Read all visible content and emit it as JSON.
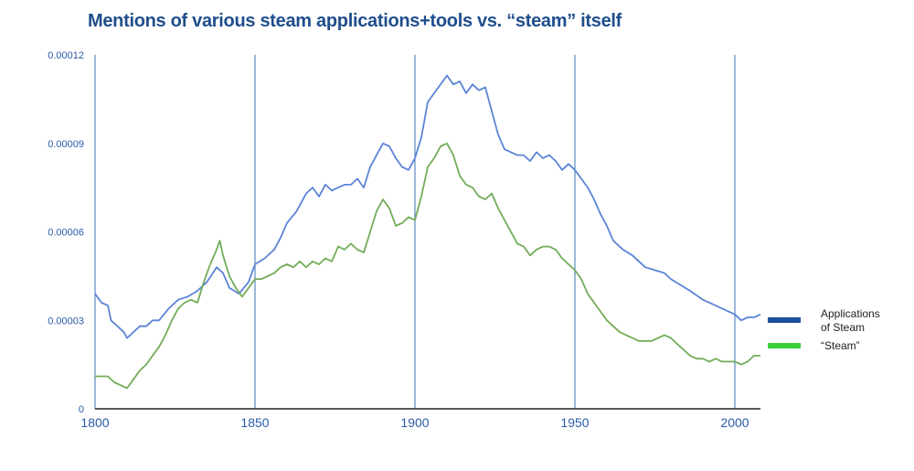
{
  "chart_data": {
    "type": "line",
    "title": "Mentions of various steam applications+tools vs. “steam” itself",
    "xlabel": "",
    "ylabel": "",
    "xlim": [
      1800,
      2008
    ],
    "ylim": [
      0,
      0.00012
    ],
    "x_ticks": [
      "1800",
      "1850",
      "1900",
      "1950",
      "2000"
    ],
    "x_tick_values": [
      1800,
      1850,
      1900,
      1950,
      2000
    ],
    "y_ticks": [
      "0",
      "0.00003",
      "0.00006",
      "0.00009",
      "0.00012"
    ],
    "y_tick_values": [
      0,
      3e-05,
      6e-05,
      9e-05,
      0.00012
    ],
    "grid": "vertical lines at each x tick",
    "legend_position": "right",
    "series": [
      {
        "name": "Applications of Steam",
        "color": "#5b84d6",
        "legend_color": "#1b4f9a",
        "points": [
          [
            1800,
            3.9e-05
          ],
          [
            1802,
            3.6e-05
          ],
          [
            1804,
            3.5e-05
          ],
          [
            1805,
            3e-05
          ],
          [
            1807,
            2.8e-05
          ],
          [
            1809,
            2.6e-05
          ],
          [
            1810,
            2.4e-05
          ],
          [
            1812,
            2.6e-05
          ],
          [
            1814,
            2.8e-05
          ],
          [
            1816,
            2.8e-05
          ],
          [
            1818,
            3e-05
          ],
          [
            1820,
            3e-05
          ],
          [
            1823,
            3.4e-05
          ],
          [
            1826,
            3.7e-05
          ],
          [
            1829,
            3.8e-05
          ],
          [
            1832,
            4e-05
          ],
          [
            1835,
            4.3e-05
          ],
          [
            1838,
            4.8e-05
          ],
          [
            1840,
            4.6e-05
          ],
          [
            1842,
            4.1e-05
          ],
          [
            1845,
            3.9e-05
          ],
          [
            1848,
            4.3e-05
          ],
          [
            1850,
            4.9e-05
          ],
          [
            1853,
            5.1e-05
          ],
          [
            1856,
            5.4e-05
          ],
          [
            1858,
            5.8e-05
          ],
          [
            1860,
            6.3e-05
          ],
          [
            1863,
            6.7e-05
          ],
          [
            1866,
            7.3e-05
          ],
          [
            1868,
            7.5e-05
          ],
          [
            1870,
            7.2e-05
          ],
          [
            1872,
            7.6e-05
          ],
          [
            1874,
            7.4e-05
          ],
          [
            1876,
            7.5e-05
          ],
          [
            1878,
            7.6e-05
          ],
          [
            1880,
            7.6e-05
          ],
          [
            1882,
            7.8e-05
          ],
          [
            1884,
            7.5e-05
          ],
          [
            1886,
            8.2e-05
          ],
          [
            1888,
            8.6e-05
          ],
          [
            1890,
            9e-05
          ],
          [
            1892,
            8.9e-05
          ],
          [
            1894,
            8.5e-05
          ],
          [
            1896,
            8.2e-05
          ],
          [
            1898,
            8.1e-05
          ],
          [
            1900,
            8.5e-05
          ],
          [
            1902,
            9.2e-05
          ],
          [
            1904,
            0.000104
          ],
          [
            1906,
            0.000107
          ],
          [
            1908,
            0.00011
          ],
          [
            1910,
            0.000113
          ],
          [
            1912,
            0.00011
          ],
          [
            1914,
            0.000111
          ],
          [
            1916,
            0.000107
          ],
          [
            1918,
            0.00011
          ],
          [
            1920,
            0.000108
          ],
          [
            1922,
            0.000109
          ],
          [
            1924,
            0.000101
          ],
          [
            1926,
            9.3e-05
          ],
          [
            1928,
            8.8e-05
          ],
          [
            1930,
            8.7e-05
          ],
          [
            1932,
            8.6e-05
          ],
          [
            1934,
            8.6e-05
          ],
          [
            1936,
            8.4e-05
          ],
          [
            1938,
            8.7e-05
          ],
          [
            1940,
            8.5e-05
          ],
          [
            1942,
            8.6e-05
          ],
          [
            1944,
            8.4e-05
          ],
          [
            1946,
            8.1e-05
          ],
          [
            1948,
            8.3e-05
          ],
          [
            1950,
            8.1e-05
          ],
          [
            1952,
            7.8e-05
          ],
          [
            1954,
            7.5e-05
          ],
          [
            1956,
            7.1e-05
          ],
          [
            1958,
            6.6e-05
          ],
          [
            1960,
            6.2e-05
          ],
          [
            1962,
            5.7e-05
          ],
          [
            1965,
            5.4e-05
          ],
          [
            1968,
            5.2e-05
          ],
          [
            1970,
            5e-05
          ],
          [
            1972,
            4.8e-05
          ],
          [
            1975,
            4.7e-05
          ],
          [
            1978,
            4.6e-05
          ],
          [
            1980,
            4.4e-05
          ],
          [
            1983,
            4.2e-05
          ],
          [
            1986,
            4e-05
          ],
          [
            1990,
            3.7e-05
          ],
          [
            1994,
            3.5e-05
          ],
          [
            1998,
            3.3e-05
          ],
          [
            2000,
            3.2e-05
          ],
          [
            2002,
            3e-05
          ],
          [
            2004,
            3.1e-05
          ],
          [
            2006,
            3.1e-05
          ],
          [
            2008,
            3.2e-05
          ]
        ]
      },
      {
        "name": "“Steam”",
        "color": "#72ad58",
        "legend_color": "#3ccf3c",
        "points": [
          [
            1800,
            1.1e-05
          ],
          [
            1802,
            1.1e-05
          ],
          [
            1804,
            1.1e-05
          ],
          [
            1806,
            9e-06
          ],
          [
            1808,
            8e-06
          ],
          [
            1810,
            7e-06
          ],
          [
            1812,
            1e-05
          ],
          [
            1814,
            1.3e-05
          ],
          [
            1816,
            1.5e-05
          ],
          [
            1818,
            1.8e-05
          ],
          [
            1820,
            2.1e-05
          ],
          [
            1822,
            2.5e-05
          ],
          [
            1824,
            3e-05
          ],
          [
            1826,
            3.4e-05
          ],
          [
            1828,
            3.6e-05
          ],
          [
            1830,
            3.7e-05
          ],
          [
            1832,
            3.6e-05
          ],
          [
            1834,
            4.3e-05
          ],
          [
            1836,
            4.9e-05
          ],
          [
            1838,
            5.4e-05
          ],
          [
            1839,
            5.7e-05
          ],
          [
            1840,
            5.2e-05
          ],
          [
            1842,
            4.5e-05
          ],
          [
            1844,
            4.1e-05
          ],
          [
            1846,
            3.8e-05
          ],
          [
            1848,
            4.1e-05
          ],
          [
            1850,
            4.4e-05
          ],
          [
            1852,
            4.4e-05
          ],
          [
            1854,
            4.5e-05
          ],
          [
            1856,
            4.6e-05
          ],
          [
            1858,
            4.8e-05
          ],
          [
            1860,
            4.9e-05
          ],
          [
            1862,
            4.8e-05
          ],
          [
            1864,
            5e-05
          ],
          [
            1866,
            4.8e-05
          ],
          [
            1868,
            5e-05
          ],
          [
            1870,
            4.9e-05
          ],
          [
            1872,
            5.1e-05
          ],
          [
            1874,
            5e-05
          ],
          [
            1876,
            5.5e-05
          ],
          [
            1878,
            5.4e-05
          ],
          [
            1880,
            5.6e-05
          ],
          [
            1882,
            5.4e-05
          ],
          [
            1884,
            5.3e-05
          ],
          [
            1886,
            6e-05
          ],
          [
            1888,
            6.7e-05
          ],
          [
            1890,
            7.1e-05
          ],
          [
            1892,
            6.8e-05
          ],
          [
            1894,
            6.2e-05
          ],
          [
            1896,
            6.3e-05
          ],
          [
            1898,
            6.5e-05
          ],
          [
            1900,
            6.4e-05
          ],
          [
            1902,
            7.2e-05
          ],
          [
            1904,
            8.2e-05
          ],
          [
            1906,
            8.5e-05
          ],
          [
            1908,
            8.9e-05
          ],
          [
            1910,
            9e-05
          ],
          [
            1912,
            8.6e-05
          ],
          [
            1914,
            7.9e-05
          ],
          [
            1916,
            7.6e-05
          ],
          [
            1918,
            7.5e-05
          ],
          [
            1920,
            7.2e-05
          ],
          [
            1922,
            7.1e-05
          ],
          [
            1924,
            7.3e-05
          ],
          [
            1926,
            6.8e-05
          ],
          [
            1928,
            6.4e-05
          ],
          [
            1930,
            6e-05
          ],
          [
            1932,
            5.6e-05
          ],
          [
            1934,
            5.5e-05
          ],
          [
            1936,
            5.2e-05
          ],
          [
            1938,
            5.4e-05
          ],
          [
            1940,
            5.5e-05
          ],
          [
            1942,
            5.5e-05
          ],
          [
            1944,
            5.4e-05
          ],
          [
            1946,
            5.1e-05
          ],
          [
            1948,
            4.9e-05
          ],
          [
            1950,
            4.7e-05
          ],
          [
            1952,
            4.4e-05
          ],
          [
            1954,
            3.9e-05
          ],
          [
            1956,
            3.6e-05
          ],
          [
            1958,
            3.3e-05
          ],
          [
            1960,
            3e-05
          ],
          [
            1962,
            2.8e-05
          ],
          [
            1964,
            2.6e-05
          ],
          [
            1966,
            2.5e-05
          ],
          [
            1968,
            2.4e-05
          ],
          [
            1970,
            2.3e-05
          ],
          [
            1972,
            2.3e-05
          ],
          [
            1974,
            2.3e-05
          ],
          [
            1976,
            2.4e-05
          ],
          [
            1978,
            2.5e-05
          ],
          [
            1980,
            2.4e-05
          ],
          [
            1982,
            2.2e-05
          ],
          [
            1984,
            2e-05
          ],
          [
            1986,
            1.8e-05
          ],
          [
            1988,
            1.7e-05
          ],
          [
            1990,
            1.7e-05
          ],
          [
            1992,
            1.6e-05
          ],
          [
            1994,
            1.7e-05
          ],
          [
            1996,
            1.6e-05
          ],
          [
            1998,
            1.6e-05
          ],
          [
            2000,
            1.6e-05
          ],
          [
            2002,
            1.5e-05
          ],
          [
            2004,
            1.6e-05
          ],
          [
            2006,
            1.8e-05
          ],
          [
            2008,
            1.8e-05
          ]
        ]
      }
    ]
  }
}
